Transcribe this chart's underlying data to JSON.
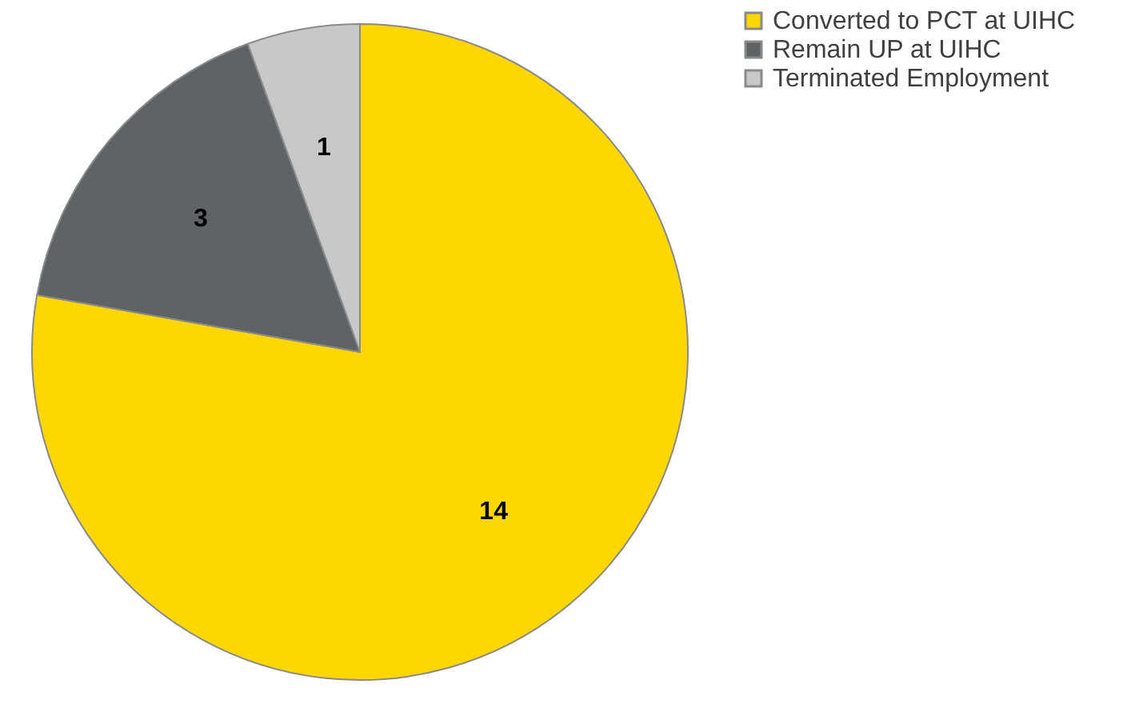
{
  "chart_data": {
    "type": "pie",
    "categories": [
      "Converted to PCT at UIHC",
      "Remain UP at UIHC",
      "Terminated Employment"
    ],
    "values": [
      14,
      3,
      1
    ],
    "colors": [
      "#ffd700",
      "#5f6366",
      "#c8c8c8"
    ],
    "data_labels": true,
    "legend": "right"
  }
}
